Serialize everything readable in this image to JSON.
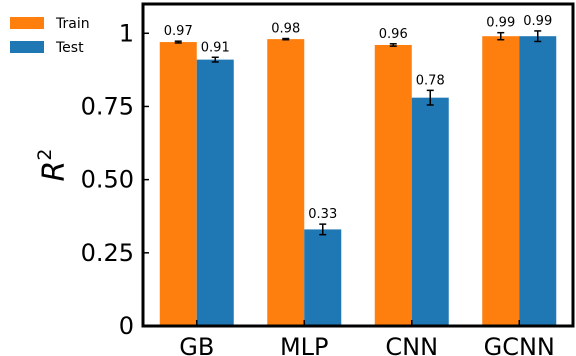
{
  "chart_data": {
    "type": "bar",
    "categories": [
      "GB",
      "MLP",
      "CNN",
      "GCNN"
    ],
    "series": [
      {
        "name": "Train",
        "color": "#ff7f0e",
        "values": [
          0.97,
          0.98,
          0.96,
          0.99
        ],
        "errors": [
          0.003,
          0.002,
          0.004,
          0.012
        ]
      },
      {
        "name": "Test",
        "color": "#1f77b4",
        "values": [
          0.91,
          0.33,
          0.78,
          0.99
        ],
        "errors": [
          0.008,
          0.018,
          0.025,
          0.018
        ]
      }
    ],
    "data_labels": {
      "Train": [
        "0.97",
        "0.98",
        "0.96",
        "0.99"
      ],
      "Test": [
        "0.91",
        "0.33",
        "0.78",
        "0.99"
      ]
    },
    "ylabel_base": "R",
    "ylabel_exponent": "2",
    "ylim": [
      0,
      1.1
    ],
    "yticks": [
      0,
      0.25,
      0.5,
      0.75,
      1
    ],
    "ytick_labels": [
      "0",
      "0.25",
      "0.50",
      "0.75",
      "1"
    ],
    "legend_position": "top-left",
    "grid": false
  }
}
